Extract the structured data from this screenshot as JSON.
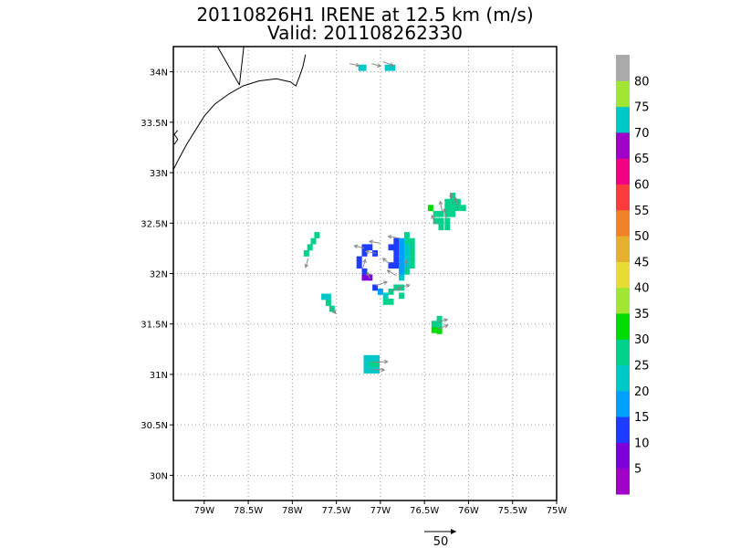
{
  "chart_data": {
    "type": "heatmap",
    "title": "20110826H1 IRENE at 12.5 km (m/s)",
    "subtitle": "Valid: 201108262330",
    "x_ticks": [
      "79W",
      "78.5W",
      "78W",
      "77.5W",
      "77W",
      "76.5W",
      "76W",
      "75.5W",
      "75W"
    ],
    "y_ticks": [
      "34N",
      "33.5N",
      "33N",
      "32.5N",
      "32N",
      "31.5N",
      "31N",
      "30.5N",
      "30N"
    ],
    "xlim": [
      -79.35,
      -75.0
    ],
    "ylim": [
      29.75,
      34.25
    ],
    "grid": true,
    "colorbar": {
      "labels": [
        "5",
        "10",
        "15",
        "20",
        "25",
        "30",
        "35",
        "40",
        "45",
        "50",
        "55",
        "60",
        "65",
        "70",
        "75",
        "80"
      ],
      "colors": [
        "#a000c8",
        "#7d00dc",
        "#1e3cff",
        "#00a0ff",
        "#00c8c8",
        "#00d28c",
        "#00dc00",
        "#a0e632",
        "#e6dc32",
        "#e6af2d",
        "#f08228",
        "#fa3c3c",
        "#f00082",
        "#a000c8",
        "#00c8c8",
        "#a0e632",
        "#aaaaaa"
      ]
    },
    "wind_cells": [
      {
        "lon": -77.22,
        "lat": 34.04,
        "speed": 20
      },
      {
        "lon": -77.19,
        "lat": 34.04,
        "speed": 20
      },
      {
        "lon": -76.92,
        "lat": 34.04,
        "speed": 20
      },
      {
        "lon": -76.86,
        "lat": 34.04,
        "speed": 20
      },
      {
        "lon": -76.43,
        "lat": 32.65,
        "speed": 33
      },
      {
        "lon": -76.37,
        "lat": 32.59,
        "speed": 28
      },
      {
        "lon": -76.37,
        "lat": 32.52,
        "speed": 28
      },
      {
        "lon": -76.31,
        "lat": 32.59,
        "speed": 28
      },
      {
        "lon": -76.31,
        "lat": 32.52,
        "speed": 28
      },
      {
        "lon": -76.31,
        "lat": 32.46,
        "speed": 28
      },
      {
        "lon": -76.24,
        "lat": 32.71,
        "speed": 28
      },
      {
        "lon": -76.24,
        "lat": 32.65,
        "speed": 28
      },
      {
        "lon": -76.24,
        "lat": 32.59,
        "speed": 28
      },
      {
        "lon": -76.24,
        "lat": 32.52,
        "speed": 28
      },
      {
        "lon": -76.24,
        "lat": 32.46,
        "speed": 28
      },
      {
        "lon": -76.18,
        "lat": 32.77,
        "speed": 28
      },
      {
        "lon": -76.18,
        "lat": 32.71,
        "speed": 28
      },
      {
        "lon": -76.18,
        "lat": 32.65,
        "speed": 28
      },
      {
        "lon": -76.18,
        "lat": 32.59,
        "speed": 28
      },
      {
        "lon": -76.12,
        "lat": 32.71,
        "speed": 28
      },
      {
        "lon": -76.12,
        "lat": 32.65,
        "speed": 25
      },
      {
        "lon": -76.06,
        "lat": 32.65,
        "speed": 25
      },
      {
        "lon": -77.72,
        "lat": 32.38,
        "speed": 25
      },
      {
        "lon": -77.76,
        "lat": 32.32,
        "speed": 25
      },
      {
        "lon": -77.8,
        "lat": 32.26,
        "speed": 25
      },
      {
        "lon": -77.84,
        "lat": 32.2,
        "speed": 25
      },
      {
        "lon": -77.18,
        "lat": 32.26,
        "speed": 13
      },
      {
        "lon": -77.12,
        "lat": 32.26,
        "speed": 13
      },
      {
        "lon": -77.06,
        "lat": 32.2,
        "speed": 13
      },
      {
        "lon": -77.18,
        "lat": 32.2,
        "speed": 13
      },
      {
        "lon": -77.24,
        "lat": 32.14,
        "speed": 13
      },
      {
        "lon": -77.24,
        "lat": 32.08,
        "speed": 13
      },
      {
        "lon": -77.18,
        "lat": 32.02,
        "speed": 13
      },
      {
        "lon": -77.18,
        "lat": 31.96,
        "speed": 8
      },
      {
        "lon": -77.12,
        "lat": 31.96,
        "speed": 8
      },
      {
        "lon": -77.06,
        "lat": 31.86,
        "speed": 13
      },
      {
        "lon": -77.0,
        "lat": 31.82,
        "speed": 18
      },
      {
        "lon": -76.94,
        "lat": 31.78,
        "speed": 22
      },
      {
        "lon": -76.88,
        "lat": 31.82,
        "speed": 25
      },
      {
        "lon": -76.82,
        "lat": 31.86,
        "speed": 25
      },
      {
        "lon": -76.76,
        "lat": 31.86,
        "speed": 25
      },
      {
        "lon": -76.94,
        "lat": 31.72,
        "speed": 28
      },
      {
        "lon": -76.88,
        "lat": 31.72,
        "speed": 28
      },
      {
        "lon": -76.76,
        "lat": 31.78,
        "speed": 28
      },
      {
        "lon": -76.88,
        "lat": 32.26,
        "speed": 13
      },
      {
        "lon": -76.82,
        "lat": 32.32,
        "speed": 13
      },
      {
        "lon": -76.82,
        "lat": 32.26,
        "speed": 13
      },
      {
        "lon": -76.82,
        "lat": 32.2,
        "speed": 13
      },
      {
        "lon": -76.82,
        "lat": 32.14,
        "speed": 13
      },
      {
        "lon": -76.82,
        "lat": 32.08,
        "speed": 13
      },
      {
        "lon": -76.88,
        "lat": 32.08,
        "speed": 13
      },
      {
        "lon": -76.76,
        "lat": 32.32,
        "speed": 18
      },
      {
        "lon": -76.76,
        "lat": 32.26,
        "speed": 18
      },
      {
        "lon": -76.76,
        "lat": 32.2,
        "speed": 18
      },
      {
        "lon": -76.76,
        "lat": 32.14,
        "speed": 18
      },
      {
        "lon": -76.76,
        "lat": 32.08,
        "speed": 18
      },
      {
        "lon": -76.76,
        "lat": 32.02,
        "speed": 18
      },
      {
        "lon": -76.76,
        "lat": 31.96,
        "speed": 22
      },
      {
        "lon": -76.7,
        "lat": 32.38,
        "speed": 25
      },
      {
        "lon": -76.7,
        "lat": 32.32,
        "speed": 25
      },
      {
        "lon": -76.7,
        "lat": 32.26,
        "speed": 22
      },
      {
        "lon": -76.7,
        "lat": 32.2,
        "speed": 22
      },
      {
        "lon": -76.7,
        "lat": 32.14,
        "speed": 22
      },
      {
        "lon": -76.7,
        "lat": 32.08,
        "speed": 22
      },
      {
        "lon": -76.7,
        "lat": 32.02,
        "speed": 25
      },
      {
        "lon": -76.64,
        "lat": 32.32,
        "speed": 25
      },
      {
        "lon": -76.64,
        "lat": 32.26,
        "speed": 25
      },
      {
        "lon": -76.64,
        "lat": 32.2,
        "speed": 25
      },
      {
        "lon": -76.64,
        "lat": 32.14,
        "speed": 25
      },
      {
        "lon": -76.64,
        "lat": 32.08,
        "speed": 25
      },
      {
        "lon": -77.64,
        "lat": 31.77,
        "speed": 20
      },
      {
        "lon": -77.59,
        "lat": 31.77,
        "speed": 20
      },
      {
        "lon": -77.59,
        "lat": 31.71,
        "speed": 25
      },
      {
        "lon": -77.55,
        "lat": 31.65,
        "speed": 25
      },
      {
        "lon": -76.39,
        "lat": 31.5,
        "speed": 28
      },
      {
        "lon": -76.33,
        "lat": 31.55,
        "speed": 28
      },
      {
        "lon": -76.33,
        "lat": 31.49,
        "speed": 28
      },
      {
        "lon": -76.39,
        "lat": 31.44,
        "speed": 33
      },
      {
        "lon": -76.33,
        "lat": 31.43,
        "speed": 33
      },
      {
        "lon": -77.16,
        "lat": 31.16,
        "speed": 20
      },
      {
        "lon": -77.1,
        "lat": 31.16,
        "speed": 20
      },
      {
        "lon": -77.04,
        "lat": 31.16,
        "speed": 20
      },
      {
        "lon": -77.16,
        "lat": 31.1,
        "speed": 22
      },
      {
        "lon": -77.1,
        "lat": 31.1,
        "speed": 25
      },
      {
        "lon": -77.04,
        "lat": 31.1,
        "speed": 25
      },
      {
        "lon": -77.16,
        "lat": 31.04,
        "speed": 20
      },
      {
        "lon": -77.1,
        "lat": 31.04,
        "speed": 20
      },
      {
        "lon": -77.04,
        "lat": 31.04,
        "speed": 20
      }
    ],
    "wind_vectors": [
      {
        "lon": -77.35,
        "lat": 34.08,
        "u": 15,
        "v": -3
      },
      {
        "lon": -77.1,
        "lat": 34.08,
        "u": 14,
        "v": -4
      },
      {
        "lon": -76.97,
        "lat": 34.1,
        "u": 16,
        "v": -6
      },
      {
        "lon": -76.3,
        "lat": 32.62,
        "u": -3,
        "v": 15
      },
      {
        "lon": -76.25,
        "lat": 32.55,
        "u": -4,
        "v": 14
      },
      {
        "lon": -76.18,
        "lat": 32.7,
        "u": -3,
        "v": 15
      },
      {
        "lon": -76.12,
        "lat": 32.65,
        "u": -4,
        "v": 16
      },
      {
        "lon": -76.38,
        "lat": 32.5,
        "u": -5,
        "v": 12
      },
      {
        "lon": -77.82,
        "lat": 32.15,
        "u": -4,
        "v": -14
      },
      {
        "lon": -77.18,
        "lat": 32.25,
        "u": -16,
        "v": 4
      },
      {
        "lon": -77.05,
        "lat": 32.2,
        "u": -16,
        "v": 3
      },
      {
        "lon": -77.0,
        "lat": 32.3,
        "u": -17,
        "v": 3
      },
      {
        "lon": -76.78,
        "lat": 32.35,
        "u": -18,
        "v": 3
      },
      {
        "lon": -76.9,
        "lat": 32.1,
        "u": -10,
        "v": 8
      },
      {
        "lon": -76.7,
        "lat": 32.02,
        "u": -2,
        "v": 18
      },
      {
        "lon": -76.82,
        "lat": 31.98,
        "u": -14,
        "v": 8
      },
      {
        "lon": -77.2,
        "lat": 32.05,
        "u": 4,
        "v": 14
      },
      {
        "lon": -77.12,
        "lat": 31.95,
        "u": -4,
        "v": 10
      },
      {
        "lon": -77.05,
        "lat": 31.88,
        "u": 17,
        "v": 6
      },
      {
        "lon": -76.9,
        "lat": 31.82,
        "u": 18,
        "v": 5
      },
      {
        "lon": -76.8,
        "lat": 31.86,
        "u": 18,
        "v": 4
      },
      {
        "lon": -77.58,
        "lat": 31.68,
        "u": 10,
        "v": -12
      },
      {
        "lon": -76.35,
        "lat": 31.52,
        "u": 15,
        "v": 4
      },
      {
        "lon": -76.35,
        "lat": 31.45,
        "u": 16,
        "v": 6
      },
      {
        "lon": -77.1,
        "lat": 31.12,
        "u": 25,
        "v": 1
      },
      {
        "lon": -77.1,
        "lat": 31.05,
        "u": 20,
        "v": -1
      }
    ],
    "coastline": [
      [
        [
          -79.35,
          33.03
        ],
        [
          -79.28,
          33.15
        ],
        [
          -79.2,
          33.28
        ],
        [
          -79.1,
          33.42
        ],
        [
          -79.0,
          33.56
        ],
        [
          -78.88,
          33.68
        ],
        [
          -78.72,
          33.78
        ],
        [
          -78.56,
          33.86
        ],
        [
          -78.38,
          33.91
        ],
        [
          -78.18,
          33.93
        ],
        [
          -78.02,
          33.9
        ],
        [
          -77.96,
          33.86
        ],
        [
          -77.92,
          33.95
        ],
        [
          -77.88,
          34.05
        ],
        [
          -77.85,
          34.17
        ]
      ],
      [
        [
          -79.3,
          33.42
        ],
        [
          -79.34,
          33.38
        ],
        [
          -79.3,
          33.33
        ],
        [
          -79.34,
          33.28
        ]
      ],
      [
        [
          -78.55,
          34.25
        ],
        [
          -78.6,
          33.87
        ]
      ],
      [
        [
          -78.85,
          34.25
        ],
        [
          -78.6,
          33.87
        ]
      ]
    ],
    "reference_vector": {
      "label": "50"
    }
  }
}
